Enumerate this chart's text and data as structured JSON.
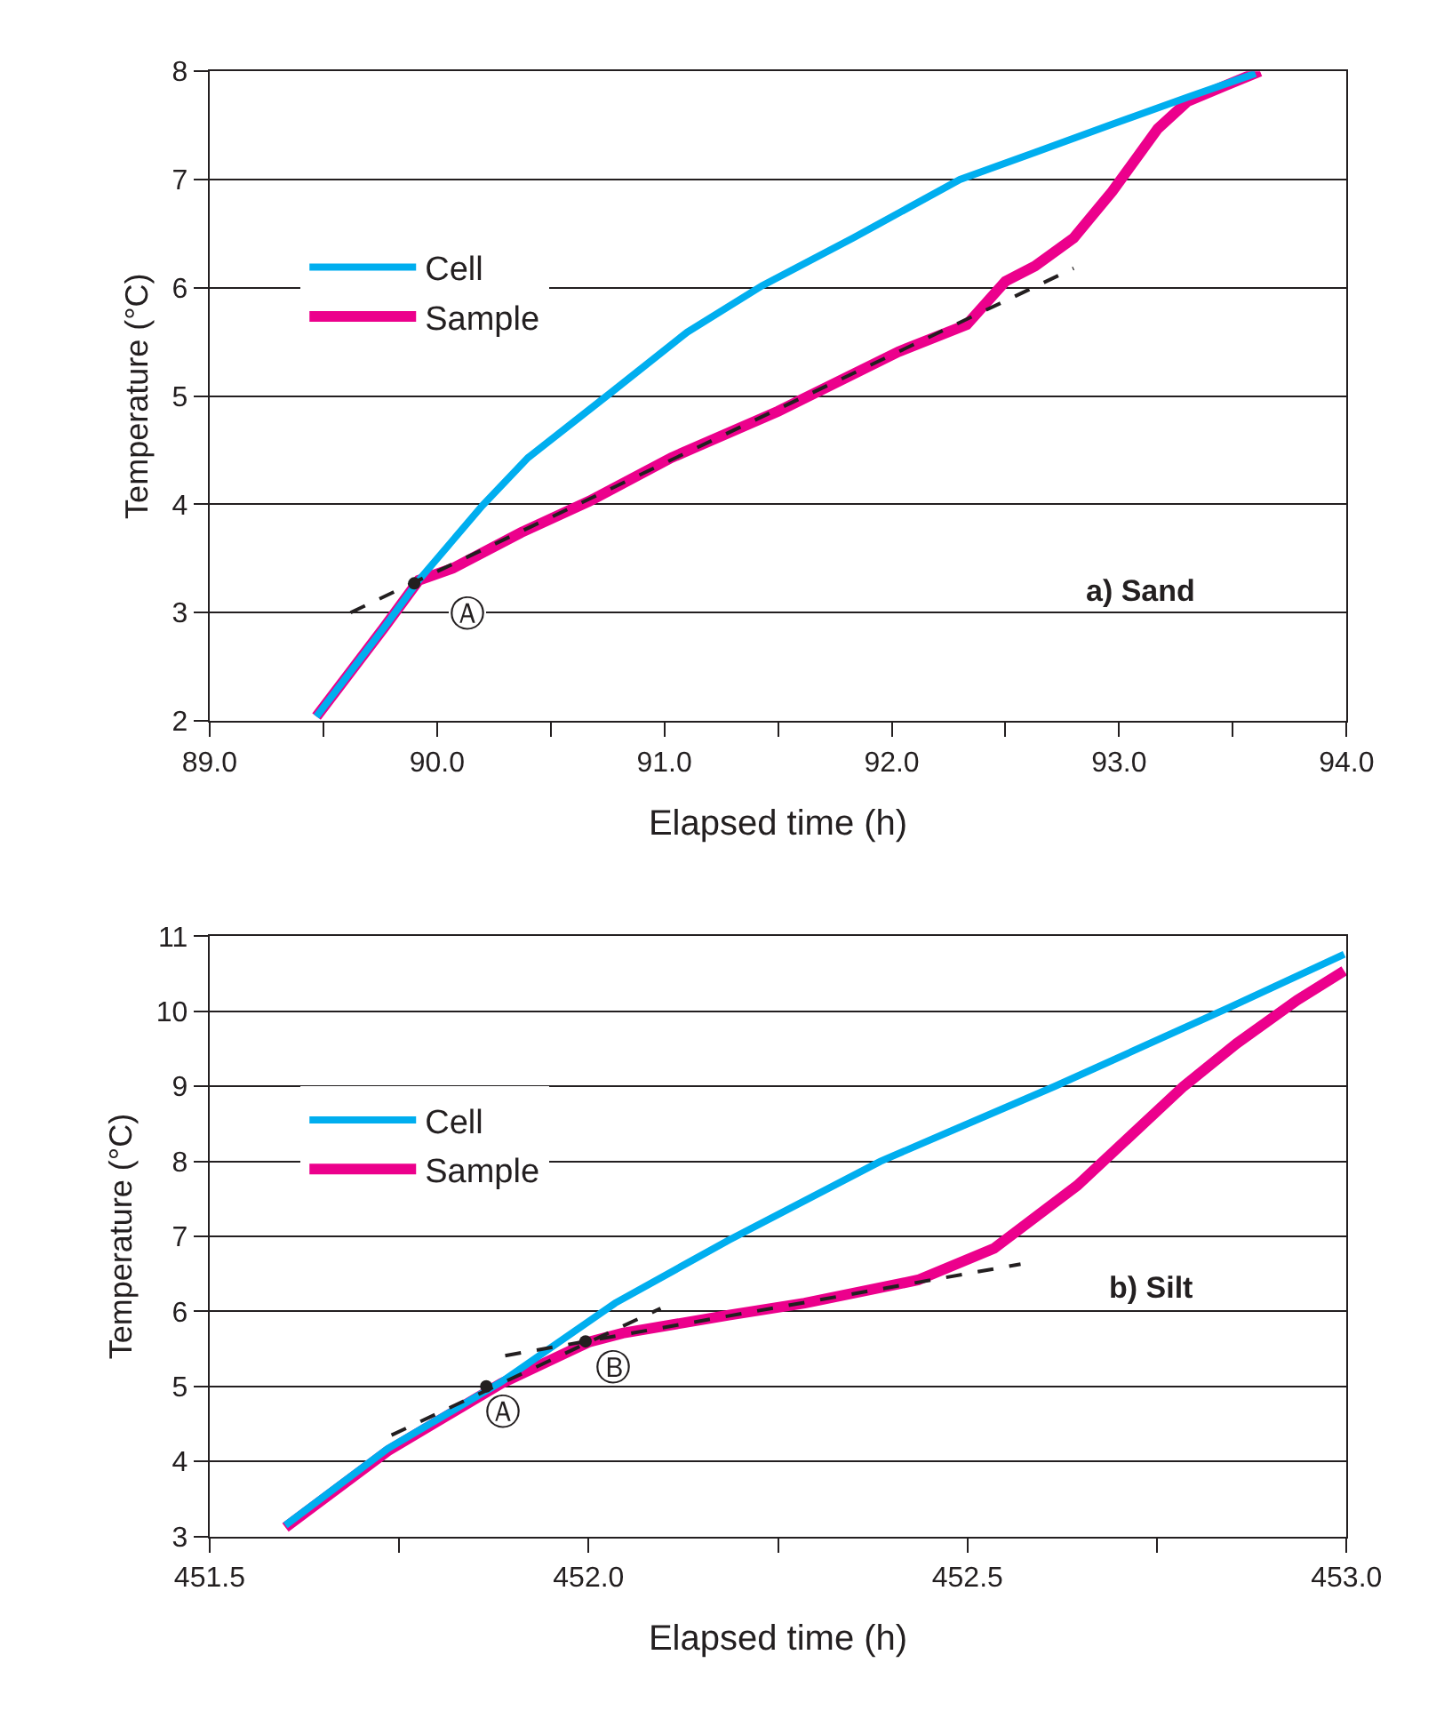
{
  "chart_data": [
    {
      "type": "line",
      "title": "a) Sand",
      "xlabel": "Elapsed time (h)",
      "ylabel": "Temperature (°C)",
      "xlim": [
        89.0,
        94.0
      ],
      "xticks": [
        {
          "value": 89.0,
          "label": "89.0"
        },
        {
          "value": 89.5,
          "label": null
        },
        {
          "value": 90.0,
          "label": "90.0"
        },
        {
          "value": 90.5,
          "label": null
        },
        {
          "value": 91.0,
          "label": "91.0"
        },
        {
          "value": 91.5,
          "label": null
        },
        {
          "value": 92.0,
          "label": "92.0"
        },
        {
          "value": 92.5,
          "label": null
        },
        {
          "value": 93.0,
          "label": "93.0"
        },
        {
          "value": 93.5,
          "label": null
        },
        {
          "value": 94.0,
          "label": "94.0"
        }
      ],
      "ylim": [
        2,
        8
      ],
      "yticks": [
        2,
        3,
        4,
        5,
        6,
        7,
        8
      ],
      "grid": "y",
      "legend": "top left",
      "series": [
        {
          "name": "Cell",
          "color": "#00aeef",
          "x": [
            89.47,
            89.77,
            89.92,
            90.2,
            90.4,
            90.77,
            91.1,
            91.43,
            91.83,
            92.3,
            92.63,
            92.97,
            93.3,
            93.6
          ],
          "values": [
            2.04,
            2.87,
            3.3,
            3.99,
            4.43,
            5.04,
            5.59,
            6.02,
            6.46,
            7.0,
            7.25,
            7.51,
            7.76,
            7.98
          ]
        },
        {
          "name": "Sample",
          "color": "#ec008c",
          "x": [
            89.47,
            89.77,
            89.92,
            90.07,
            90.37,
            90.67,
            91.03,
            91.5,
            92.03,
            92.33,
            92.5,
            92.63,
            92.8,
            92.97,
            93.17,
            93.3,
            93.47,
            93.62
          ],
          "values": [
            2.04,
            2.87,
            3.3,
            3.41,
            3.74,
            4.03,
            4.43,
            4.86,
            5.41,
            5.66,
            6.06,
            6.2,
            6.46,
            6.89,
            7.47,
            7.72,
            7.87,
            8.0
          ]
        },
        {
          "type": "line",
          "color": "#231f20",
          "line_style": "dashed",
          "x": [
            89.62,
            92.8
          ],
          "values": [
            3.0,
            6.18
          ]
        },
        {
          "type": "scatter",
          "color": "#231f20",
          "marker": "circle",
          "x": [
            89.9
          ],
          "values": [
            3.27
          ]
        }
      ],
      "annotations": [
        "Ⓐ"
      ]
    },
    {
      "type": "line",
      "title": "b) Silt",
      "xlabel": "Elapsed time (h)",
      "ylabel": "Temperature (°C)",
      "xlim": [
        451.5,
        453.0
      ],
      "xticks": [
        451.5,
        {
          "value": 451.75,
          "label": null
        },
        {
          "value": 452.0,
          "label": "452.0"
        },
        {
          "value": 452.25,
          "label": null
        },
        {
          "value": 452.5,
          "label": "452.5"
        },
        {
          "value": 452.75,
          "label": null
        },
        {
          "value": 453.0,
          "label": "453.0"
        }
      ],
      "ylim": [
        3,
        11
      ],
      "yticks": [
        3,
        4,
        5,
        6,
        7,
        8,
        9,
        10,
        11
      ],
      "grid": "y",
      "legend": "top left",
      "series": [
        {
          "name": "Cell",
          "color": "#00aeef",
          "x": [
            451.6,
            451.735,
            451.885,
            452.035,
            452.185,
            452.385,
            452.615,
            452.845,
            452.997
          ],
          "values": [
            3.15,
            4.17,
            5.06,
            6.11,
            6.95,
            8.0,
            9.0,
            10.05,
            10.76
          ]
        },
        {
          "name": "Sample",
          "color": "#ec008c",
          "x": [
            451.6,
            451.735,
            451.885,
            452.0,
            452.045,
            452.185,
            452.285,
            452.435,
            452.535,
            452.645,
            452.785,
            452.855,
            452.935,
            452.997
          ],
          "values": [
            3.12,
            4.14,
            5.04,
            5.59,
            5.71,
            5.95,
            6.11,
            6.42,
            6.84,
            7.68,
            9.0,
            9.57,
            10.15,
            10.54
          ]
        },
        {
          "type": "line",
          "color": "#231f20",
          "line_style": "dashed",
          "x": [
            451.74,
            452.095
          ],
          "values": [
            4.35,
            6.04
          ]
        },
        {
          "type": "line",
          "color": "#231f20",
          "line_style": "dashed",
          "x": [
            451.89,
            452.57
          ],
          "values": [
            5.41,
            6.63
          ]
        },
        {
          "type": "scatter",
          "color": "#231f20",
          "marker": "circle",
          "x": [
            451.865,
            451.996
          ],
          "values": [
            5.0,
            5.6
          ]
        }
      ],
      "annotations": [
        "Ⓐ",
        "Ⓑ"
      ]
    }
  ]
}
